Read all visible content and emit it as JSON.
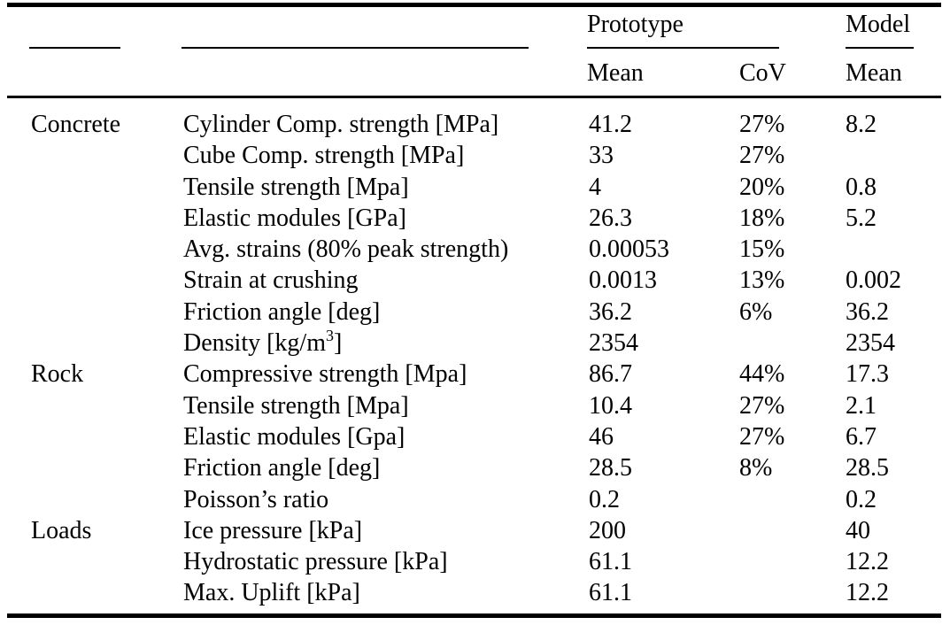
{
  "colors": {
    "background": "#ffffff",
    "text": "#000000",
    "rules": "#000000"
  },
  "header": {
    "prototype": "Prototype",
    "model": "Model",
    "prototype_mean": "Mean",
    "prototype_cov": "CoV",
    "model_mean": "Mean"
  },
  "rows": [
    {
      "group": "Concrete",
      "property": "Cylinder Comp. strength [MPa]",
      "proto_mean": "41.2",
      "proto_cov": "27%",
      "model_mean": "8.2"
    },
    {
      "group": "",
      "property": "Cube Comp. strength [MPa]",
      "proto_mean": "33",
      "proto_cov": "27%",
      "model_mean": ""
    },
    {
      "group": "",
      "property": "Tensile strength [Mpa]",
      "proto_mean": "4",
      "proto_cov": "20%",
      "model_mean": "0.8"
    },
    {
      "group": "",
      "property": "Elastic modules [GPa]",
      "proto_mean": "26.3",
      "proto_cov": "18%",
      "model_mean": "5.2"
    },
    {
      "group": "",
      "property": "Avg. strains (80% peak strength)",
      "proto_mean": "0.00053",
      "proto_cov": "15%",
      "model_mean": ""
    },
    {
      "group": "",
      "property": "Strain at crushing",
      "proto_mean": "0.0013",
      "proto_cov": "13%",
      "model_mean": "0.002"
    },
    {
      "group": "",
      "property": "Friction angle [deg]",
      "proto_mean": "36.2",
      "proto_cov": "6%",
      "model_mean": "36.2"
    },
    {
      "group": "",
      "property_prefix": "Density [kg/m",
      "property_sup": "3",
      "property_suffix": "]",
      "proto_mean": "2354",
      "proto_cov": "",
      "model_mean": "2354"
    },
    {
      "group": "Rock",
      "property": "Compressive strength [Mpa]",
      "proto_mean": "86.7",
      "proto_cov": "44%",
      "model_mean": "17.3"
    },
    {
      "group": "",
      "property": "Tensile strength [Mpa]",
      "proto_mean": "10.4",
      "proto_cov": "27%",
      "model_mean": "2.1"
    },
    {
      "group": "",
      "property": "Elastic modules [Gpa]",
      "proto_mean": "46",
      "proto_cov": "27%",
      "model_mean": "6.7"
    },
    {
      "group": "",
      "property": "Friction angle [deg]",
      "proto_mean": "28.5",
      "proto_cov": "8%",
      "model_mean": "28.5"
    },
    {
      "group": "",
      "property": "Poisson’s ratio",
      "proto_mean": "0.2",
      "proto_cov": "",
      "model_mean": "0.2"
    },
    {
      "group": "Loads",
      "property": "Ice pressure [kPa]",
      "proto_mean": "200",
      "proto_cov": "",
      "model_mean": "40"
    },
    {
      "group": "",
      "property": "Hydrostatic pressure [kPa]",
      "proto_mean": "61.1",
      "proto_cov": "",
      "model_mean": "12.2"
    },
    {
      "group": "",
      "property": "Max. Uplift [kPa]",
      "proto_mean": "61.1",
      "proto_cov": "",
      "model_mean": "12.2"
    }
  ]
}
